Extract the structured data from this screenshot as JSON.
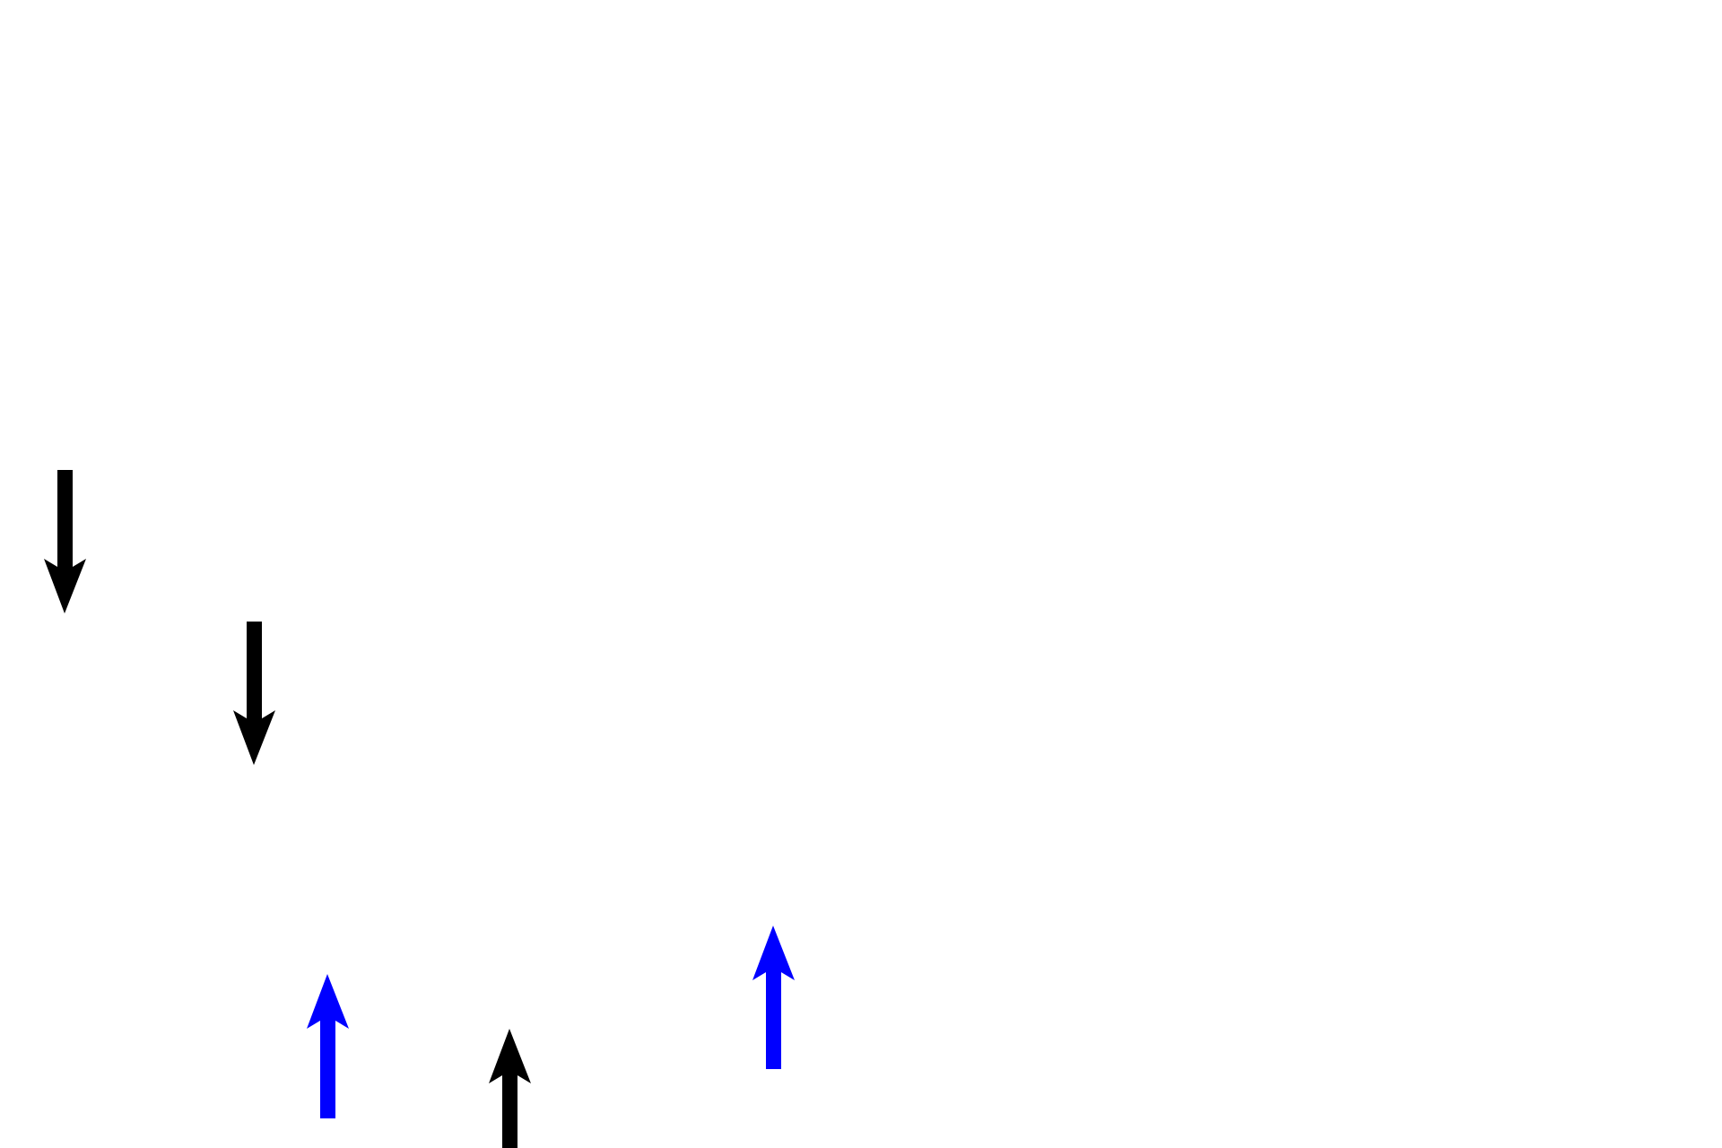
{
  "colors": {
    "background": "#ffffff",
    "black_arrow": "#000000",
    "blue_arrow": "#0000ff"
  },
  "arrows": [
    {
      "direction": "down",
      "color": "black"
    },
    {
      "direction": "down",
      "color": "black"
    },
    {
      "direction": "up",
      "color": "blue"
    },
    {
      "direction": "up",
      "color": "black"
    },
    {
      "direction": "up",
      "color": "blue"
    }
  ]
}
